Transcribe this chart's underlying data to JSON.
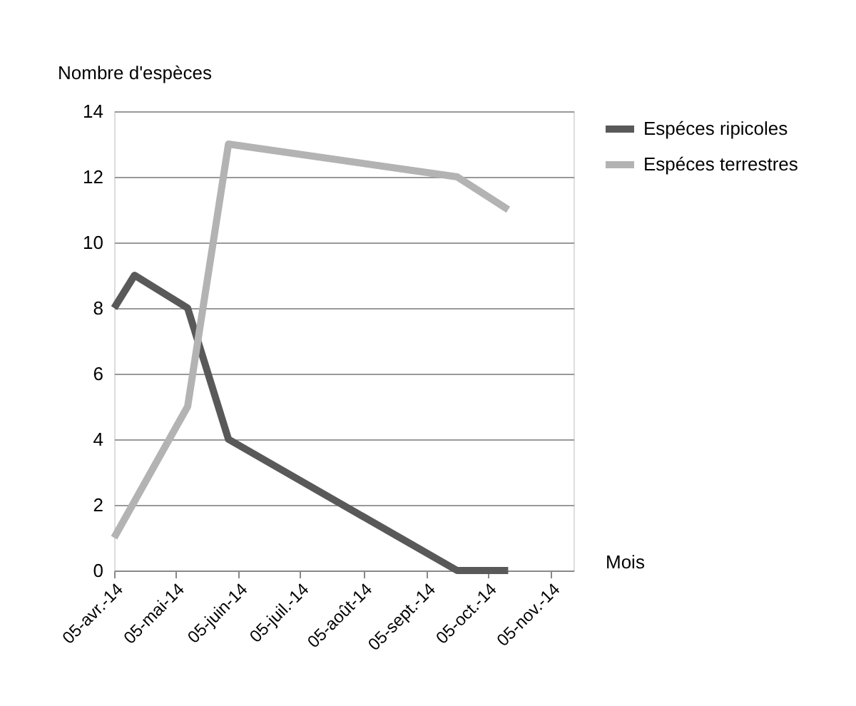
{
  "chart_data": {
    "type": "line",
    "ylabel": "Nombre d'espèces",
    "xlabel": "Mois",
    "series": [
      {
        "name": "Espéces  ripicoles",
        "color": "#595959",
        "x": [
          "2014-04-05",
          "2014-04-15",
          "2014-05-11",
          "2014-05-31",
          "2014-09-20",
          "2014-10-15"
        ],
        "values": [
          8,
          9,
          8,
          4,
          0,
          0
        ]
      },
      {
        "name": "Espéces terrestres",
        "color": "#b3b3b3",
        "x": [
          "2014-04-05",
          "2014-05-11",
          "2014-05-31",
          "2014-09-20",
          "2014-10-15"
        ],
        "values": [
          1,
          5,
          13,
          12,
          11
        ]
      }
    ],
    "xlim": [
      "2014-04-05",
      "2014-11-16"
    ],
    "xticks": [
      {
        "value": "2014-04-05",
        "label": "05-avr.-14"
      },
      {
        "value": "2014-05-05",
        "label": "05-mai-14"
      },
      {
        "value": "2014-06-05",
        "label": "05-juin-14"
      },
      {
        "value": "2014-07-05",
        "label": "05-juil.-14"
      },
      {
        "value": "2014-08-05",
        "label": "05-août-14"
      },
      {
        "value": "2014-09-05",
        "label": "05-sept.-14"
      },
      {
        "value": "2014-10-05",
        "label": "05-oct.-14"
      },
      {
        "value": "2014-11-05",
        "label": "05-nov.-14"
      }
    ],
    "ylim": [
      0,
      14
    ],
    "yticks": [
      0,
      2,
      4,
      6,
      8,
      10,
      12,
      14
    ],
    "grid": "y",
    "legend": "right",
    "marker": "none",
    "line_style": "solid"
  }
}
